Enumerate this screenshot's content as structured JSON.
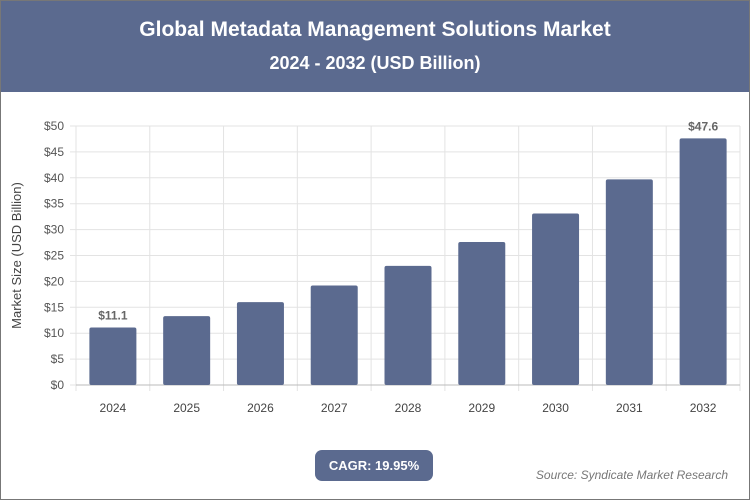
{
  "header": {
    "title": "Global Metadata Management Solutions Market",
    "subtitle": "2024 - 2032 (USD Billion)"
  },
  "chart_data": {
    "type": "bar",
    "categories": [
      "2024",
      "2025",
      "2026",
      "2027",
      "2028",
      "2029",
      "2030",
      "2031",
      "2032"
    ],
    "values": [
      11.1,
      13.3,
      16.0,
      19.2,
      23.0,
      27.6,
      33.1,
      39.7,
      47.6
    ],
    "data_labels": {
      "0": "$11.1",
      "8": "$47.6"
    },
    "ylabel": "Market Size (USD Billion)",
    "ylim": [
      0,
      50
    ],
    "yticks": [
      0,
      5,
      10,
      15,
      20,
      25,
      30,
      35,
      40,
      45,
      50
    ],
    "ytick_prefix": "$",
    "grid": true,
    "bar_color": "#5b6a8f"
  },
  "footer": {
    "cagr": "CAGR: 19.95%",
    "source": "Source: Syndicate Market Research"
  }
}
